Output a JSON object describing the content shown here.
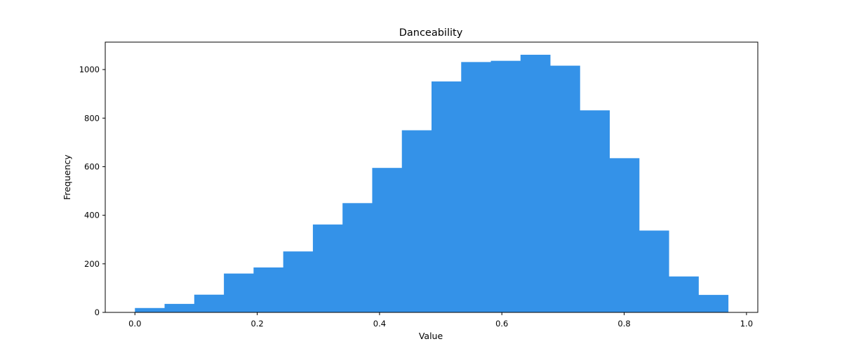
{
  "chart_data": {
    "type": "bar",
    "title": "Danceability",
    "xlabel": "Value",
    "ylabel": "Frequency",
    "xlim": [
      -0.0485,
      1.0185
    ],
    "ylim": [
      0,
      1113
    ],
    "xticks": [
      0.0,
      0.2,
      0.4,
      0.6,
      0.8,
      1.0
    ],
    "xtick_labels": [
      "0.0",
      "0.2",
      "0.4",
      "0.6",
      "0.8",
      "1.0"
    ],
    "yticks": [
      0,
      200,
      400,
      600,
      800,
      1000
    ],
    "ytick_labels": [
      "0",
      "200",
      "400",
      "600",
      "800",
      "1000"
    ],
    "grid": false,
    "legend": "none",
    "bar_color": "#3492e8",
    "bin_edges": [
      0.0,
      0.0485,
      0.097,
      0.1455,
      0.194,
      0.2425,
      0.291,
      0.3395,
      0.388,
      0.4365,
      0.485,
      0.5335,
      0.582,
      0.6305,
      0.679,
      0.7275,
      0.776,
      0.8245,
      0.873,
      0.9215,
      0.97
    ],
    "values": [
      18,
      35,
      73,
      160,
      185,
      251,
      362,
      450,
      595,
      750,
      951,
      1031,
      1036,
      1061,
      1016,
      832,
      635,
      337,
      148,
      72
    ]
  }
}
